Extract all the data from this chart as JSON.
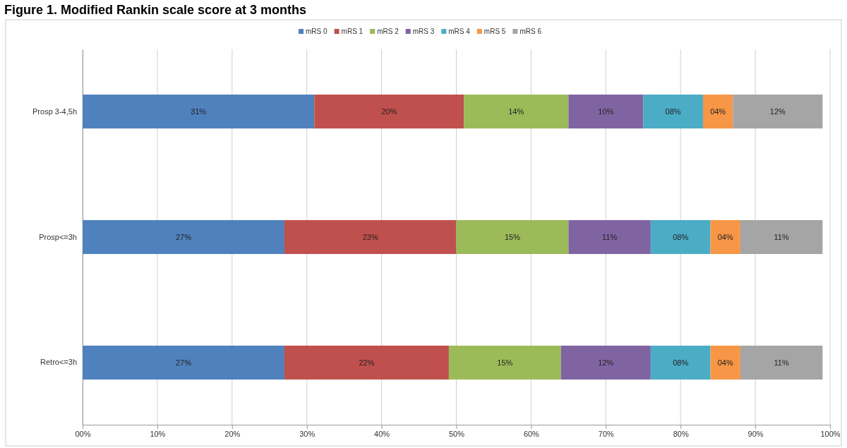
{
  "chart_data": {
    "type": "bar",
    "title": "Figure 1. Modified Rankin scale score at 3 months",
    "orientation": "horizontal",
    "stacked": true,
    "categories": [
      "Prosp 3-4,5h",
      "Prosp<=3h",
      "Retro<=3h"
    ],
    "series": [
      {
        "name": "mRS 0",
        "color": "#4f81bd",
        "values": [
          31,
          27,
          27
        ],
        "value_labels": [
          "31%",
          "27%",
          "27%"
        ]
      },
      {
        "name": "mRS 1",
        "color": "#c0504d",
        "values": [
          20,
          23,
          22
        ],
        "value_labels": [
          "20%",
          "23%",
          "22%"
        ]
      },
      {
        "name": "mRS 2",
        "color": "#9bbb59",
        "values": [
          14,
          15,
          15
        ],
        "value_labels": [
          "14%",
          "15%",
          "15%"
        ]
      },
      {
        "name": "mRS 3",
        "color": "#8064a2",
        "values": [
          10,
          11,
          12
        ],
        "value_labels": [
          "10%",
          "11%",
          "12%"
        ]
      },
      {
        "name": "mRS 4",
        "color": "#4bacc6",
        "values": [
          8,
          8,
          8
        ],
        "value_labels": [
          "08%",
          "08%",
          "08%"
        ]
      },
      {
        "name": "mRS 5",
        "color": "#f79646",
        "values": [
          4,
          4,
          4
        ],
        "value_labels": [
          "04%",
          "04%",
          "04%"
        ]
      },
      {
        "name": "mRS 6",
        "color": "#a5a5a5",
        "values": [
          12,
          11,
          11
        ],
        "value_labels": [
          "12%",
          "11%",
          "11%"
        ]
      }
    ],
    "xlim": [
      0,
      100
    ],
    "xticks": [
      {
        "value": 0,
        "label": "00%"
      },
      {
        "value": 10,
        "label": "10%"
      },
      {
        "value": 20,
        "label": "20%"
      },
      {
        "value": 30,
        "label": "30%"
      },
      {
        "value": 40,
        "label": "40%"
      },
      {
        "value": 50,
        "label": "50%"
      },
      {
        "value": 60,
        "label": "60%"
      },
      {
        "value": 70,
        "label": "70%"
      },
      {
        "value": 80,
        "label": "80%"
      },
      {
        "value": 90,
        "label": "90%"
      },
      {
        "value": 100,
        "label": "100%"
      }
    ],
    "grid": "x",
    "legend": "top"
  }
}
